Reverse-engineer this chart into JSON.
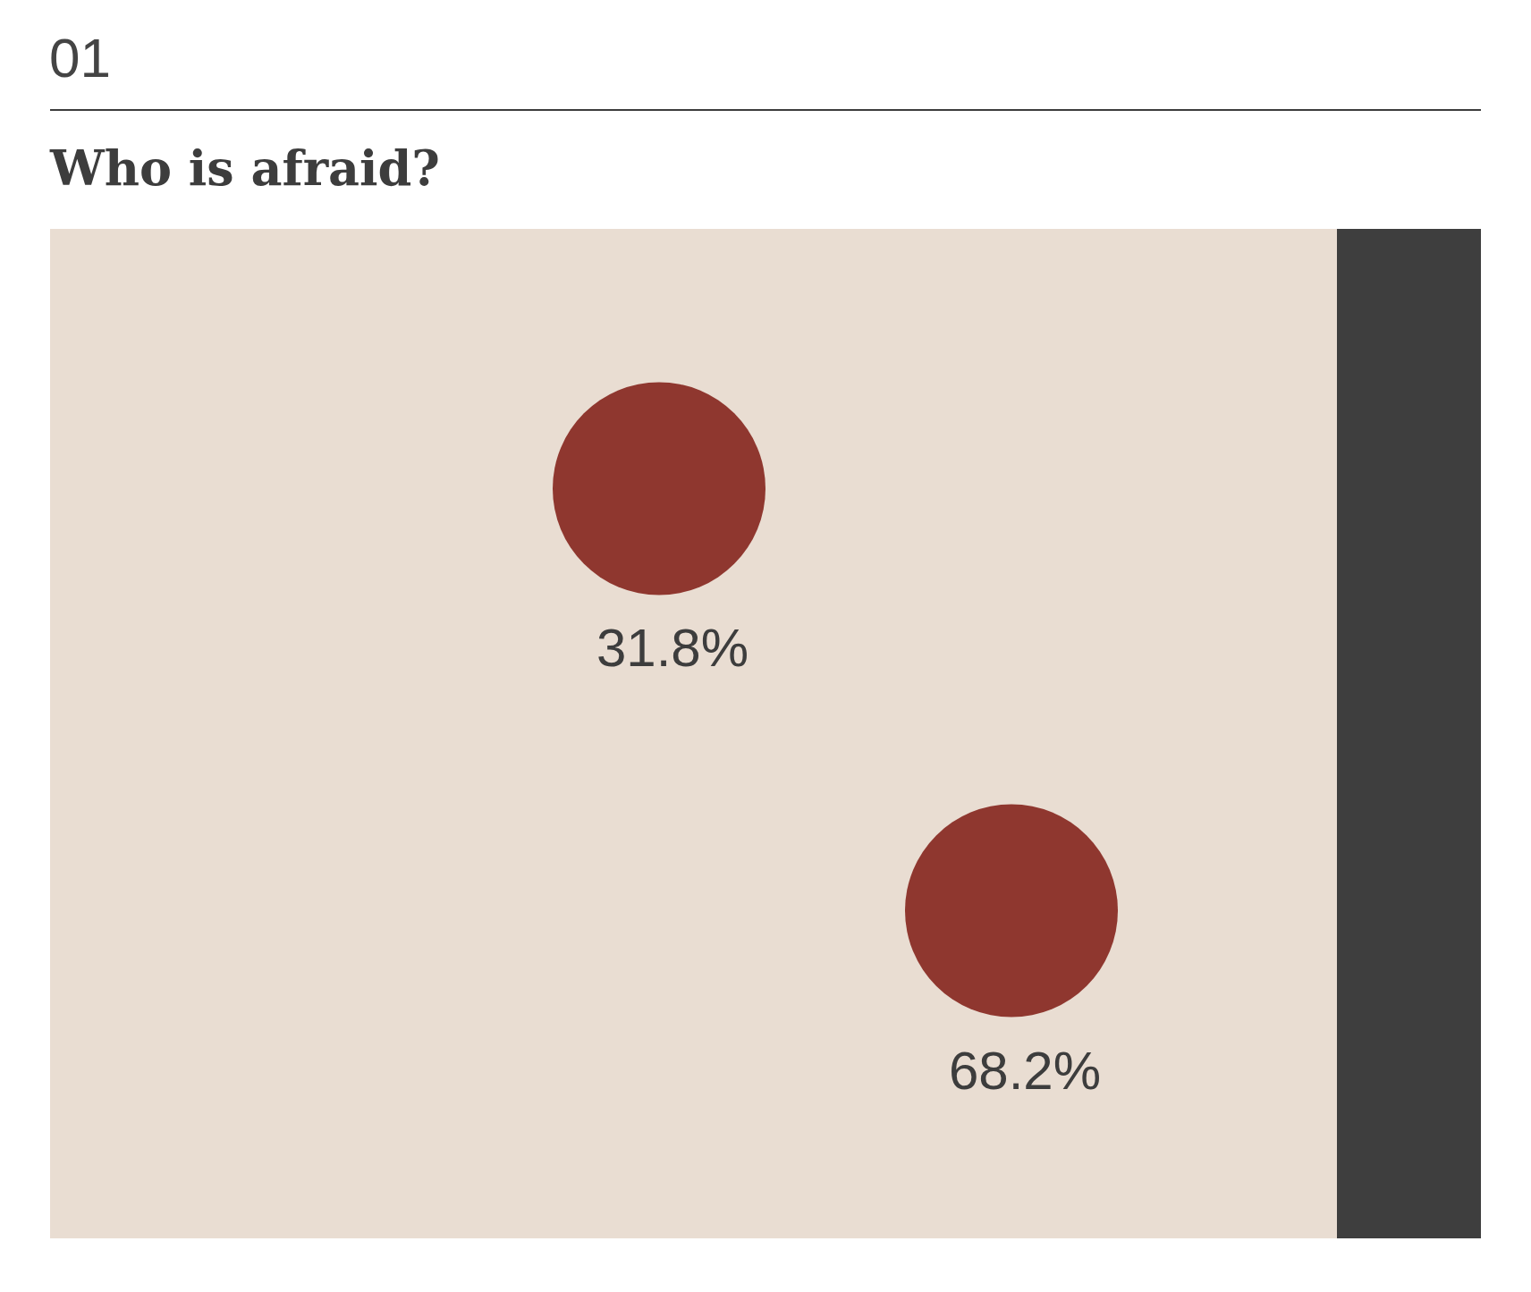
{
  "chart_data": {
    "type": "other",
    "title": "Who is afraid?",
    "annotations": [
      "01"
    ],
    "categories": [
      null,
      null
    ],
    "values": [
      31.8,
      68.2
    ],
    "value_labels": [
      "31.8%",
      "68.2%"
    ],
    "color": "#8f372f"
  }
}
